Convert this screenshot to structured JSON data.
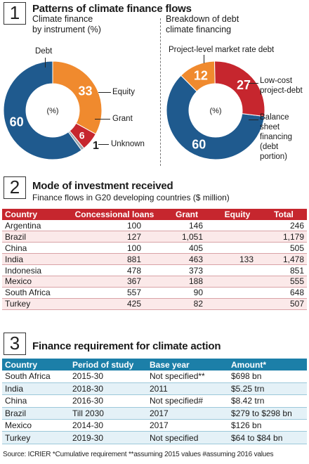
{
  "section1": {
    "number": "1",
    "title": "Patterns of climate finance flows",
    "left_subtitle_line1": "Climate finance",
    "left_subtitle_line2": "by instrument (%)",
    "right_subtitle_line1": "Breakdown of debt",
    "right_subtitle_line2": "climate financing"
  },
  "section2": {
    "number": "2",
    "title": "Mode of investment received",
    "subtitle": "Finance flows in G20 developing countries ($ million)"
  },
  "section3": {
    "number": "3",
    "title": "Finance requirement for climate action"
  },
  "colors": {
    "blue": "#1f5a8e",
    "orange": "#f08a2e",
    "red": "#c6262e",
    "gray": "#9aa4ad",
    "teal_header": "#1c7fa8"
  },
  "chart_data": [
    {
      "type": "pie",
      "title": "Climate finance by instrument (%)",
      "center_label": "(%)",
      "slices": [
        {
          "label": "Debt",
          "value": 60,
          "color": "#1f5a8e"
        },
        {
          "label": "Equity",
          "value": 33,
          "color": "#f08a2e"
        },
        {
          "label": "Grant",
          "value": 6,
          "color": "#c6262e"
        },
        {
          "label": "Unknown",
          "value": 1,
          "color": "#9aa4ad"
        }
      ]
    },
    {
      "type": "pie",
      "title": "Breakdown of debt climate financing",
      "center_label": "(%)",
      "slices": [
        {
          "label": "Project-level market rate debt",
          "value": 60,
          "color": "#1f5a8e"
        },
        {
          "label": "Low-cost project-debt",
          "value": 12,
          "color": "#f08a2e"
        },
        {
          "label": "Balance sheet financing (debt portion)",
          "value": 27,
          "color": "#c6262e"
        }
      ]
    },
    {
      "type": "table",
      "title": "Mode of investment received",
      "columns": [
        "Country",
        "Concessional loans",
        "Grant",
        "Equity",
        "Total"
      ],
      "rows": [
        [
          "Argentina",
          "100",
          "146",
          "",
          "246"
        ],
        [
          "Brazil",
          "127",
          "1,051",
          "",
          "1,179"
        ],
        [
          "China",
          "100",
          "405",
          "",
          "505"
        ],
        [
          "India",
          "881",
          "463",
          "133",
          "1,478"
        ],
        [
          "Indonesia",
          "478",
          "373",
          "",
          "851"
        ],
        [
          "Mexico",
          "367",
          "188",
          "",
          "555"
        ],
        [
          "South Africa",
          "557",
          "90",
          "",
          "648"
        ],
        [
          "Turkey",
          "425",
          "82",
          "",
          "507"
        ]
      ]
    },
    {
      "type": "table",
      "title": "Finance requirement for climate action",
      "columns": [
        "Country",
        "Period of study",
        "Base year",
        "Amount*"
      ],
      "rows": [
        [
          "South Africa",
          "2015-30",
          "Not specified**",
          "$698 bn"
        ],
        [
          "India",
          "2018-30",
          "2011",
          "$5.25 trn"
        ],
        [
          "China",
          "2016-30",
          "Not specified#",
          "$8.42 trn"
        ],
        [
          "Brazil",
          "Till 2030",
          "2017",
          "$279 to $298 bn"
        ],
        [
          "Mexico",
          "2014-30",
          "2017",
          "$126 bn"
        ],
        [
          "Turkey",
          "2019-30",
          "Not specified",
          "$64 to $84 bn"
        ]
      ]
    }
  ],
  "source": "Source: ICRIER *Cumulative requirement **assuming 2015 values #assuming 2016 values"
}
